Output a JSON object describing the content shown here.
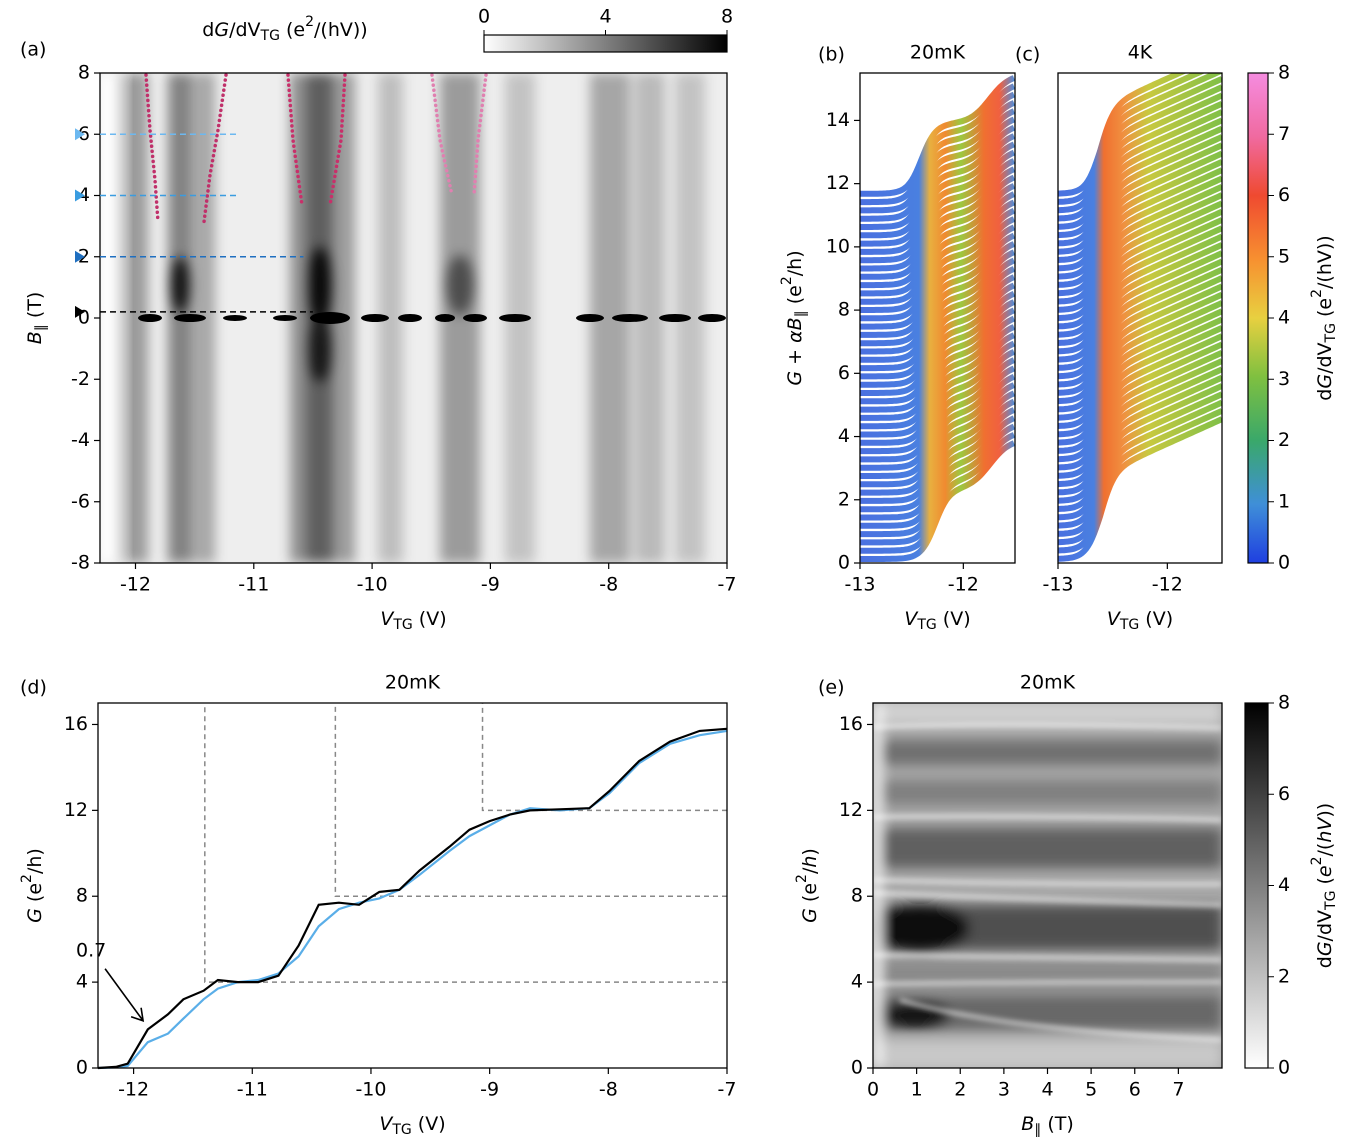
{
  "chart_data": [
    {
      "type": "heatmap",
      "panel": "(a)",
      "colorbar_label": [
        {
          "text": "d"
        },
        {
          "text": "G",
          "italic": true
        },
        {
          "text": "/dV"
        },
        {
          "text": "TG",
          "sub": true
        },
        {
          "text": " (e"
        },
        {
          "text": "2",
          "sup": true
        },
        {
          "text": "/(hV))"
        }
      ],
      "colorbar_lim": [
        0,
        8
      ],
      "colorbar_ticks": [
        0,
        4,
        8
      ],
      "colorbar_orientation": "horizontal",
      "xlabel": [
        {
          "text": "V",
          "italic": true
        },
        {
          "text": "TG",
          "sub": true
        },
        {
          "text": " (V)"
        }
      ],
      "ylabel": [
        {
          "text": "B",
          "italic": true
        },
        {
          "text": "∥",
          "sub": true
        },
        {
          "text": " (T)"
        }
      ],
      "xlim": [
        -12.3,
        -7
      ],
      "xticks": [
        -12,
        -11,
        -10,
        -9,
        -8,
        -7
      ],
      "ylim": [
        -8,
        8
      ],
      "yticks": [
        -8,
        -6,
        -4,
        -2,
        0,
        2,
        4,
        6,
        8
      ],
      "cuts": [
        {
          "B": 6,
          "x_end": -11.14,
          "color": "#6cb8f0"
        },
        {
          "B": 4,
          "x_end": -11.14,
          "color": "#3a9ce0"
        },
        {
          "B": 2,
          "x_end": -10.58,
          "color": "#1f6fc0"
        },
        {
          "B": 0.2,
          "x_end": -10.5,
          "color": "#000000"
        }
      ]
    },
    {
      "type": "waterfall",
      "panel": "(b)",
      "title": "20mK",
      "xlabel": [
        {
          "text": "V",
          "italic": true
        },
        {
          "text": "TG",
          "sub": true
        },
        {
          "text": " (V)"
        }
      ],
      "ylabel": [
        {
          "text": "G",
          "italic": true
        },
        {
          "text": " + "
        },
        {
          "text": "αB",
          "italic": true
        },
        {
          "text": "∥",
          "sub": true
        },
        {
          "text": " (e"
        },
        {
          "text": "2",
          "sup": true
        },
        {
          "text": "/h)"
        }
      ],
      "xlim": [
        -13,
        -11.5
      ],
      "xticks": [
        -13,
        -12
      ],
      "ylim": [
        0,
        15.5
      ],
      "yticks": [
        0,
        2,
        4,
        6,
        8,
        10,
        12,
        14
      ]
    },
    {
      "type": "waterfall",
      "panel": "(c)",
      "title": "4K",
      "xlabel": [
        {
          "text": "V",
          "italic": true
        },
        {
          "text": "TG",
          "sub": true
        },
        {
          "text": " (V)"
        }
      ],
      "xlim": [
        -13,
        -11.5
      ],
      "xticks": [
        -13,
        -12
      ],
      "ylim": [
        0,
        15.5
      ],
      "colorbar_label": [
        {
          "text": "d"
        },
        {
          "text": "G",
          "italic": true
        },
        {
          "text": "/dV"
        },
        {
          "text": "TG",
          "sub": true
        },
        {
          "text": " (e"
        },
        {
          "text": "2",
          "sup": true
        },
        {
          "text": "/(hV))"
        }
      ],
      "colorbar_lim": [
        0,
        8
      ],
      "colorbar_ticks": [
        0,
        1,
        2,
        3,
        4,
        5,
        6,
        7,
        8
      ],
      "colorbar_orientation": "vertical"
    },
    {
      "type": "line",
      "panel": "(d)",
      "title": "20mK",
      "xlabel": [
        {
          "text": "V",
          "italic": true
        },
        {
          "text": "TG",
          "sub": true
        },
        {
          "text": " (V)"
        }
      ],
      "ylabel": [
        {
          "text": "G",
          "italic": true
        },
        {
          "text": " (e"
        },
        {
          "text": "2",
          "sup": true
        },
        {
          "text": "/h)"
        }
      ],
      "xlim": [
        -12.3,
        -7
      ],
      "xticks": [
        -12,
        -11,
        -10,
        -9,
        -8,
        -7
      ],
      "ylim": [
        0,
        17
      ],
      "yticks": [
        0,
        4,
        8,
        12,
        16
      ],
      "x": [
        -12.3,
        -12.15,
        -12.05,
        -11.88,
        -11.71,
        -11.58,
        -11.41,
        -11.29,
        -11.12,
        -10.95,
        -10.78,
        -10.61,
        -10.44,
        -10.27,
        -10.1,
        -9.93,
        -9.76,
        -9.59,
        -9.34,
        -9.17,
        -9,
        -8.83,
        -8.66,
        -8.41,
        -8.16,
        -7.99,
        -7.74,
        -7.48,
        -7.23,
        -7
      ],
      "series": [
        {
          "color": "#000000",
          "values": [
            0,
            0.05,
            0.2,
            1.8,
            2.5,
            3.2,
            3.6,
            4.1,
            4.0,
            4.0,
            4.3,
            5.7,
            7.6,
            7.7,
            7.6,
            8.2,
            8.3,
            9.2,
            10.3,
            11.1,
            11.5,
            11.8,
            12.0,
            12.05,
            12.1,
            12.9,
            14.3,
            15.2,
            15.7,
            15.8
          ]
        },
        {
          "color": "#5aaee8",
          "values": [
            0,
            0.03,
            0.1,
            1.2,
            1.6,
            2.3,
            3.2,
            3.7,
            4.0,
            4.1,
            4.4,
            5.2,
            6.6,
            7.4,
            7.7,
            7.9,
            8.3,
            9.0,
            10.1,
            10.8,
            11.3,
            11.8,
            12.1,
            12.0,
            12.1,
            12.8,
            14.2,
            15.1,
            15.5,
            15.7
          ]
        }
      ],
      "guides": [
        {
          "x": -11.4,
          "y": 4
        },
        {
          "x": -10.3,
          "y": 8
        },
        {
          "x": -9.06,
          "y": 12
        }
      ],
      "annotation": {
        "text": "0.7",
        "x": -11.92,
        "y": 2.2
      }
    },
    {
      "type": "heatmap",
      "panel": "(e)",
      "title": "20mK",
      "xlabel": [
        {
          "text": "B",
          "italic": true
        },
        {
          "text": "∥",
          "sub": true
        },
        {
          "text": " (T)"
        }
      ],
      "ylabel": [
        {
          "text": "G",
          "italic": true
        },
        {
          "text": " (e"
        },
        {
          "text": "2",
          "sup": true
        },
        {
          "text": "/"
        },
        {
          "text": "h",
          "italic": true
        },
        {
          "text": ")"
        }
      ],
      "xlim": [
        0,
        8
      ],
      "xticks": [
        0,
        1,
        2,
        3,
        4,
        5,
        6,
        7
      ],
      "ylim": [
        0,
        17
      ],
      "yticks": [
        0,
        4,
        8,
        12,
        16
      ],
      "colorbar_label": [
        {
          "text": "d"
        },
        {
          "text": "G",
          "italic": true
        },
        {
          "text": "/dV"
        },
        {
          "text": "TG",
          "sub": true
        },
        {
          "text": " ("
        },
        {
          "text": "e",
          "italic": true
        },
        {
          "text": "2",
          "sup": true
        },
        {
          "text": "/("
        },
        {
          "text": "hV",
          "italic": true
        },
        {
          "text": "))"
        }
      ],
      "colorbar_lim": [
        0,
        8
      ],
      "colorbar_ticks": [
        0,
        2,
        4,
        6,
        8
      ],
      "colorbar_orientation": "vertical"
    }
  ]
}
